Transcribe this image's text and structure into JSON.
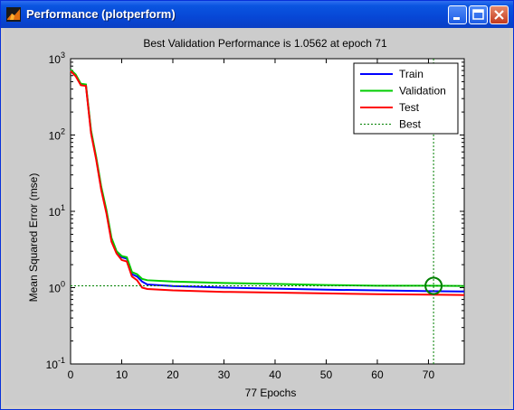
{
  "window": {
    "title": "Performance (plotperform)"
  },
  "chart_data": {
    "type": "line",
    "title": "Best Validation Performance is 1.0562 at epoch 71",
    "xlabel": "77 Epochs",
    "ylabel": "Mean Squared Error  (mse)",
    "xlim": [
      0,
      77
    ],
    "ylim": [
      0.1,
      1000
    ],
    "yscale": "log",
    "x_ticks": [
      "0",
      "10",
      "20",
      "30",
      "40",
      "50",
      "60",
      "70"
    ],
    "y_ticks": [
      {
        "base": "10",
        "exp": "-1"
      },
      {
        "base": "10",
        "exp": "0"
      },
      {
        "base": "10",
        "exp": "1"
      },
      {
        "base": "10",
        "exp": "2"
      },
      {
        "base": "10",
        "exp": "3"
      }
    ],
    "legend_position": "top-right",
    "best": {
      "epoch": 71,
      "value": 1.0562,
      "name": "Best"
    },
    "series": [
      {
        "name": "Train",
        "color": "#0000ff",
        "x": [
          0,
          1,
          2,
          3,
          4,
          5,
          6,
          7,
          8,
          9,
          10,
          11,
          12,
          13,
          14,
          15,
          20,
          30,
          40,
          50,
          60,
          70,
          77
        ],
        "y": [
          700,
          600,
          460,
          450,
          110,
          50,
          20,
          10,
          4.3,
          2.9,
          2.5,
          2.4,
          1.5,
          1.4,
          1.2,
          1.1,
          1.05,
          1.0,
          0.97,
          0.94,
          0.92,
          0.9,
          0.89
        ]
      },
      {
        "name": "Validation",
        "color": "#00cc00",
        "x": [
          0,
          1,
          2,
          3,
          4,
          5,
          6,
          7,
          8,
          9,
          10,
          11,
          12,
          13,
          14,
          15,
          20,
          30,
          40,
          50,
          60,
          70,
          77
        ],
        "y": [
          720,
          620,
          470,
          460,
          115,
          52,
          21,
          10.5,
          4.5,
          3.0,
          2.6,
          2.5,
          1.6,
          1.5,
          1.3,
          1.25,
          1.2,
          1.15,
          1.12,
          1.08,
          1.06,
          1.06,
          1.05
        ]
      },
      {
        "name": "Test",
        "color": "#ff0000",
        "x": [
          0,
          1,
          2,
          3,
          4,
          5,
          6,
          7,
          8,
          9,
          10,
          11,
          12,
          13,
          14,
          15,
          20,
          30,
          40,
          50,
          60,
          70,
          77
        ],
        "y": [
          690,
          590,
          450,
          440,
          105,
          48,
          19,
          9.5,
          4.0,
          2.8,
          2.3,
          2.2,
          1.4,
          1.25,
          1.0,
          0.96,
          0.92,
          0.88,
          0.86,
          0.84,
          0.82,
          0.81,
          0.8
        ]
      }
    ]
  }
}
